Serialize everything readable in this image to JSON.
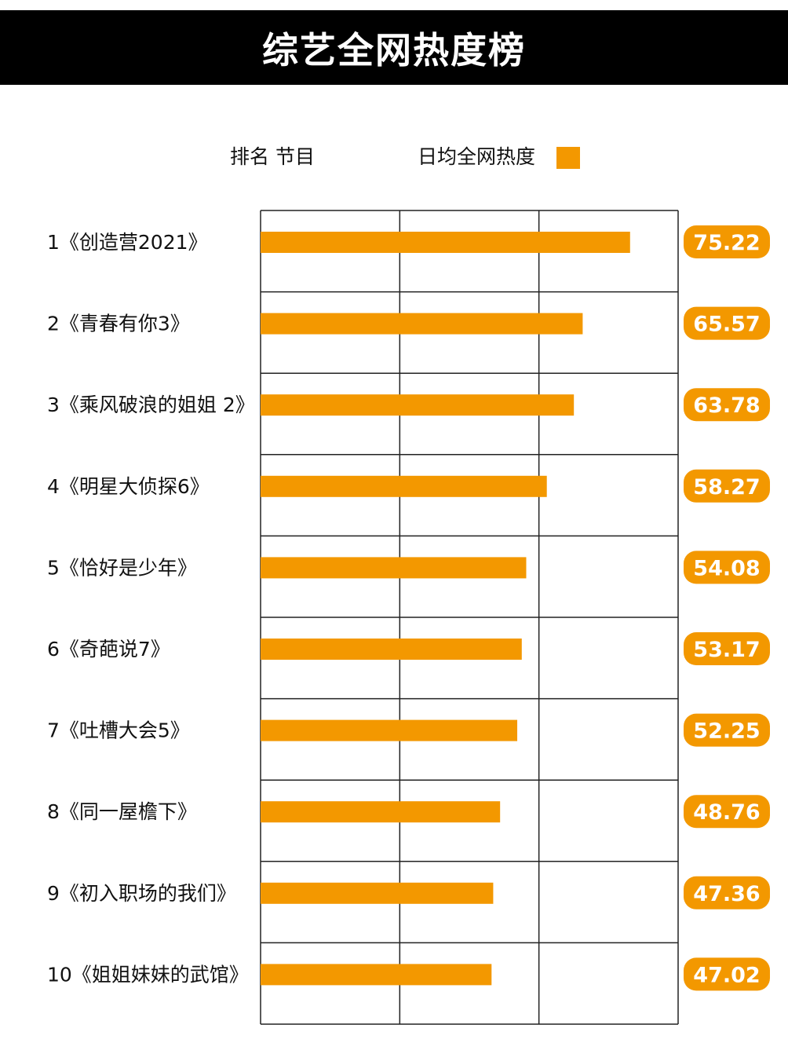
{
  "title": "综艺全网热度榜",
  "chart_data": {
    "type": "bar",
    "orientation": "horizontal",
    "title": "综艺全网热度榜",
    "header_rank_program": "排名 节目",
    "legend": [
      {
        "label": "日均全网热度",
        "color": "#F39800"
      }
    ],
    "categories": [
      "1《创造营2021》",
      "2《青春有你3》",
      "3《乘风破浪的姐姐 2》",
      "4《明星大侦探6》",
      "5《恰好是少年》",
      "6《奇葩说7》",
      "7《吐槽大会5》",
      "8《同一屋檐下》",
      "9《初入职场的我们》",
      "10《姐姐妹妹的武馆》"
    ],
    "series": [
      {
        "name": "日均全网热度",
        "values": [
          75.22,
          65.57,
          63.78,
          58.27,
          54.08,
          53.17,
          52.25,
          48.76,
          47.36,
          47.02
        ]
      }
    ],
    "value_labels": [
      "75.22",
      "65.57",
      "63.78",
      "58.27",
      "54.08",
      "53.17",
      "52.25",
      "48.76",
      "47.36",
      "47.02"
    ],
    "xlim": [
      0,
      85
    ],
    "grid": true,
    "colors": {
      "bar": "#F39800",
      "badge": "#F39800",
      "title_bg": "#000000",
      "grid": "#222222"
    }
  }
}
